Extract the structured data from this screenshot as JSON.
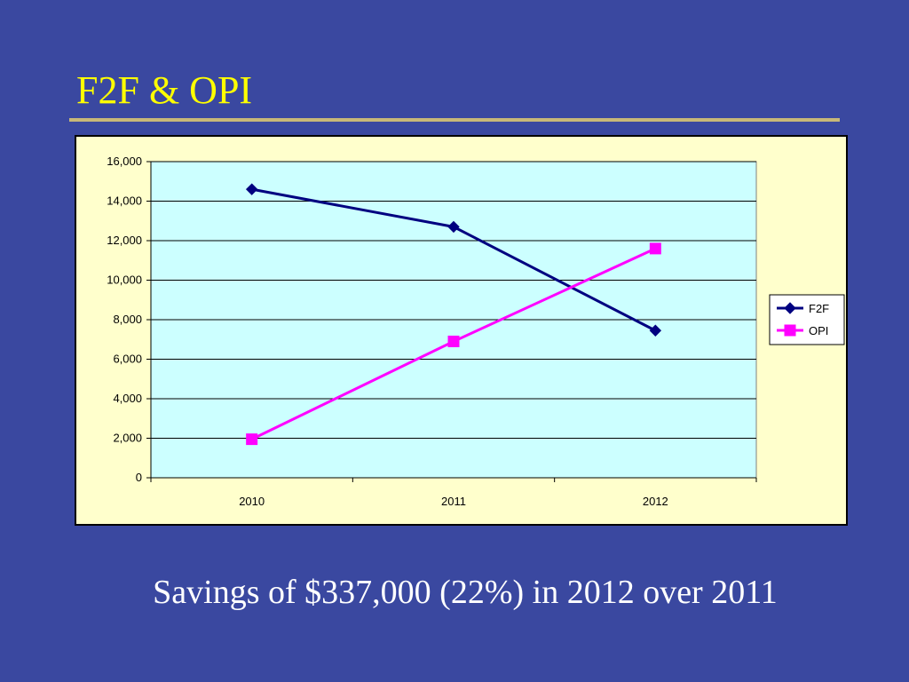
{
  "slide": {
    "title": "F2F & OPI",
    "caption": "Savings of $337,000 (22%) in 2012 over 2011"
  },
  "colors": {
    "background": "#3a48a0",
    "title": "#ffff00",
    "rule": "#c8b878",
    "chart_area": "#ffffcc",
    "plot_area": "#ccffff",
    "caption": "#ffffff"
  },
  "chart_data": {
    "type": "line",
    "title": "",
    "xlabel": "",
    "ylabel": "",
    "categories": [
      "2010",
      "2011",
      "2012"
    ],
    "ylim": [
      0,
      16000
    ],
    "yticks": [
      0,
      2000,
      4000,
      6000,
      8000,
      10000,
      12000,
      14000,
      16000
    ],
    "ytick_labels": [
      "0",
      "2,000",
      "4,000",
      "6,000",
      "8,000",
      "10,000",
      "12,000",
      "14,000",
      "16,000"
    ],
    "grid": true,
    "legend_position": "right",
    "series": [
      {
        "name": "F2F",
        "values": [
          14600,
          12700,
          7450
        ],
        "color": "#000080",
        "marker": "diamond"
      },
      {
        "name": "OPI",
        "values": [
          1950,
          6900,
          11600
        ],
        "color": "#ff00ff",
        "marker": "square"
      }
    ]
  }
}
